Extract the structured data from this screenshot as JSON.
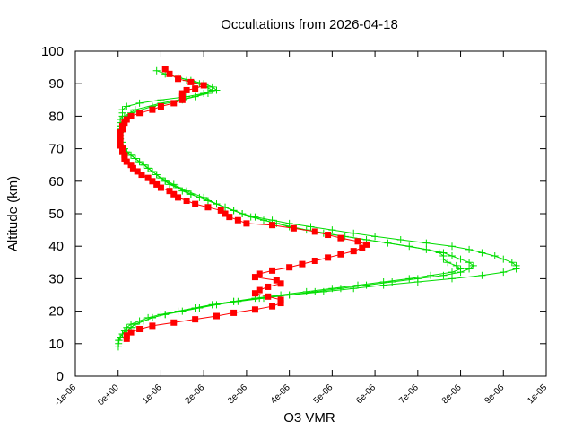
{
  "chart_data": {
    "type": "line",
    "title": "Occultations from 2026-04-18",
    "xlabel": "O3 VMR",
    "ylabel": "Altitude (km)",
    "xlim": [
      -1e-06,
      1e-05
    ],
    "ylim": [
      0,
      100
    ],
    "x_ticks": [
      -1e-06,
      0,
      1e-06,
      2e-06,
      3e-06,
      4e-06,
      5e-06,
      6e-06,
      7e-06,
      8e-06,
      9e-06,
      1e-05
    ],
    "x_tick_labels": [
      "-1e-06",
      "0e+00",
      "1e-06",
      "2e-06",
      "3e-06",
      "4e-06",
      "5e-06",
      "6e-06",
      "7e-06",
      "8e-06",
      "9e-06",
      "1e-05"
    ],
    "y_ticks": [
      0,
      10,
      20,
      30,
      40,
      50,
      60,
      70,
      80,
      90,
      100
    ],
    "y_tick_labels": [
      "0",
      "10",
      "20",
      "30",
      "40",
      "50",
      "60",
      "70",
      "80",
      "90",
      "100"
    ],
    "grid": false,
    "legend": "none",
    "series": [
      {
        "color": "#ff0000",
        "marker": "square",
        "y": [
          94.5,
          93,
          91.5,
          90.5,
          89.5,
          88.5,
          88,
          87,
          86,
          85,
          84,
          83,
          82,
          81,
          80,
          79,
          78,
          77,
          76,
          75,
          74,
          73,
          72,
          71,
          70,
          69,
          68,
          67,
          66,
          65,
          64,
          63,
          62,
          61,
          60,
          59,
          58,
          57,
          56,
          55,
          54,
          53,
          52,
          51,
          50,
          49,
          48,
          47,
          46.5,
          45.5,
          44.5,
          43.5,
          42.5,
          41.5,
          40.5,
          39.5,
          38.5,
          37.5,
          36.5,
          35.5,
          34.5,
          33.5,
          32.5,
          31.5,
          30.5,
          29.5,
          28.5,
          27.5,
          26.5,
          25.5,
          24.5,
          23.5,
          22.5,
          21.5,
          20.5,
          19.5,
          18.5,
          17.5,
          16.5,
          15.5,
          14.5,
          13.5,
          12.5,
          11.5
        ],
        "x": [
          1.1e-06,
          1.2e-06,
          1.4e-06,
          1.7e-06,
          2e-06,
          1.8e-06,
          1.6e-06,
          1.5e-06,
          1.5e-06,
          1.5e-06,
          1.3e-06,
          1e-06,
          8e-07,
          5e-07,
          3e-07,
          2e-07,
          1.5e-07,
          1e-07,
          1e-07,
          5e-08,
          5e-08,
          5e-08,
          5e-08,
          5e-08,
          1e-07,
          1e-07,
          1.5e-07,
          1.5e-07,
          2e-07,
          3e-07,
          3.5e-07,
          4.5e-07,
          5.5e-07,
          7e-07,
          8e-07,
          9e-07,
          1e-06,
          1.2e-06,
          1.3e-06,
          1.4e-06,
          1.6e-06,
          1.8e-06,
          2.1e-06,
          2.4e-06,
          2.5e-06,
          2.6e-06,
          2.8e-06,
          3e-06,
          3.6e-06,
          4.1e-06,
          4.6e-06,
          4.9e-06,
          5.2e-06,
          5.6e-06,
          5.8e-06,
          5.7e-06,
          5.5e-06,
          5.2e-06,
          4.9e-06,
          4.6e-06,
          4.3e-06,
          4e-06,
          3.6e-06,
          3.3e-06,
          3.2e-06,
          3.7e-06,
          3.8e-06,
          3.5e-06,
          3.3e-06,
          3.2e-06,
          3.5e-06,
          3.8e-06,
          3.8e-06,
          3.6e-06,
          3.2e-06,
          2.7e-06,
          2.3e-06,
          1.8e-06,
          1.3e-06,
          8e-07,
          5e-07,
          3e-07,
          2e-07,
          2e-07
        ]
      },
      {
        "color": "#00dd00",
        "marker": "plus",
        "y": [
          94,
          93,
          92,
          91,
          90,
          89,
          88,
          87,
          86,
          85,
          84,
          83,
          82,
          81,
          80,
          79,
          78,
          77,
          76,
          75,
          74,
          73,
          72,
          71,
          70,
          69,
          68,
          67,
          66,
          65,
          64,
          63,
          62,
          61,
          60,
          59,
          58,
          57,
          56,
          55,
          54,
          53,
          52,
          51,
          50,
          49,
          48,
          47,
          46,
          45,
          44,
          43,
          42,
          41,
          40,
          39,
          38,
          37,
          36,
          35,
          34,
          33,
          32,
          31,
          30,
          29,
          28,
          27,
          26,
          25,
          24,
          23,
          22,
          21,
          20,
          19,
          18,
          17,
          16,
          15,
          14,
          13,
          12,
          11,
          10,
          9
        ],
        "x": [
          9e-07,
          1.1e-06,
          1.4e-06,
          1.7e-06,
          2e-06,
          2.2e-06,
          2.3e-06,
          2e-06,
          1.6e-06,
          1e-06,
          5e-07,
          2e-07,
          1e-07,
          1e-07,
          1e-07,
          5e-08,
          5e-08,
          5e-08,
          5e-08,
          5e-08,
          5e-08,
          5e-08,
          5e-08,
          1e-07,
          1.5e-07,
          2e-07,
          3e-07,
          4e-07,
          5e-07,
          6e-07,
          7e-07,
          8e-07,
          9e-07,
          1e-06,
          1.1e-06,
          1.2e-06,
          1.4e-06,
          1.5e-06,
          1.7e-06,
          1.9e-06,
          2.1e-06,
          2.3e-06,
          2.5e-06,
          2.7e-06,
          2.9e-06,
          3.2e-06,
          3.6e-06,
          4e-06,
          4.5e-06,
          5e-06,
          5.5e-06,
          6e-06,
          6.6e-06,
          7.2e-06,
          7.8e-06,
          8.2e-06,
          8.5e-06,
          8.8e-06,
          9e-06,
          9.2e-06,
          9.3e-06,
          9.3e-06,
          9e-06,
          8.5e-06,
          7.8e-06,
          7e-06,
          6.2e-06,
          5.5e-06,
          4.8e-06,
          4e-06,
          3.3e-06,
          2.7e-06,
          2.2e-06,
          1.8e-06,
          1.4e-06,
          1e-06,
          7e-07,
          5e-07,
          3e-07,
          2e-07,
          1.5e-07,
          1e-07,
          5e-08,
          2e-08,
          1e-08,
          5e-09
        ]
      },
      {
        "color": "#00dd00",
        "marker": "plus",
        "y": [
          92,
          90,
          88,
          86,
          84,
          82,
          80,
          78,
          76,
          74,
          72,
          70,
          68,
          66,
          64,
          62,
          60,
          58,
          56,
          54,
          52,
          50,
          48,
          46,
          44,
          42,
          40,
          38,
          37,
          36,
          35,
          34,
          33,
          32,
          31,
          30,
          29,
          28,
          27,
          26,
          25,
          24,
          23,
          22,
          21,
          20,
          19,
          18,
          17,
          16,
          15,
          14,
          13,
          12,
          11
        ],
        "x": [
          1.4e-06,
          1.9e-06,
          2.2e-06,
          1.8e-06,
          1e-06,
          4e-07,
          1.5e-07,
          1e-07,
          1e-07,
          5e-08,
          1e-07,
          1.5e-07,
          3e-07,
          5e-07,
          7e-07,
          9e-07,
          1.1e-06,
          1.4e-06,
          1.7e-06,
          2.1e-06,
          2.5e-06,
          2.9e-06,
          3.4e-06,
          4e-06,
          4.8e-06,
          5.8e-06,
          6.8e-06,
          7.6e-06,
          7.8e-06,
          8e-06,
          8.2e-06,
          8.3e-06,
          8.2e-06,
          8e-06,
          7.6e-06,
          7e-06,
          6.4e-06,
          5.8e-06,
          5.2e-06,
          4.6e-06,
          4e-06,
          3.4e-06,
          2.8e-06,
          2.3e-06,
          1.9e-06,
          1.5e-06,
          1.1e-06,
          8e-07,
          6e-07,
          4e-07,
          3e-07,
          2e-07,
          1e-07,
          5e-08,
          1e-08
        ]
      },
      {
        "color": "#00dd00",
        "marker": "plus",
        "y": [
          91,
          89,
          87,
          85,
          83,
          81,
          79,
          77,
          75,
          73,
          71,
          69,
          67,
          65,
          63,
          61,
          59,
          57,
          55,
          53,
          51,
          49,
          47,
          45,
          43,
          41,
          39,
          38,
          37,
          36,
          35,
          34,
          33,
          32,
          31,
          30,
          29,
          28,
          27,
          26,
          25,
          24,
          23,
          22,
          21,
          20,
          19,
          18,
          17,
          16,
          15,
          14,
          13
        ],
        "x": [
          1.6e-06,
          2.1e-06,
          2.1e-06,
          1.5e-06,
          8e-07,
          3e-07,
          1e-07,
          5e-08,
          5e-08,
          5e-08,
          1e-07,
          2e-07,
          4e-07,
          6e-07,
          8e-07,
          1e-06,
          1.3e-06,
          1.6e-06,
          2e-06,
          2.3e-06,
          2.7e-06,
          3.1e-06,
          3.7e-06,
          4.4e-06,
          5.3e-06,
          6.3e-06,
          7.2e-06,
          7.5e-06,
          7.6e-06,
          7.6e-06,
          7.7e-06,
          7.9e-06,
          8e-06,
          7.8e-06,
          7.3e-06,
          6.8e-06,
          6.2e-06,
          5.6e-06,
          5e-06,
          4.4e-06,
          3.8e-06,
          3.2e-06,
          2.7e-06,
          2.2e-06,
          1.8e-06,
          1.4e-06,
          1.1e-06,
          8e-07,
          6e-07,
          4e-07,
          3e-07,
          2e-07,
          1e-07
        ]
      }
    ]
  }
}
